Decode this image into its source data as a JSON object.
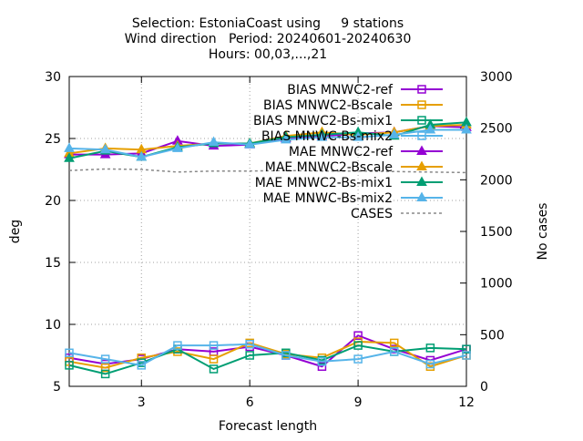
{
  "chart_data": {
    "type": "line",
    "title_lines": [
      "Selection: EstoniaCoast using     9 stations",
      "Wind direction   Period: 20240601-20240630",
      "Hours: 00,03,...,21"
    ],
    "xlabel": "Forecast length",
    "ylabel": "deg",
    "y2label": "No cases",
    "xlim": [
      1,
      12
    ],
    "ylim": [
      5,
      30
    ],
    "y2lim": [
      0,
      3000
    ],
    "xticks": [
      3,
      6,
      9,
      12
    ],
    "yticks": [
      5,
      10,
      15,
      20,
      25,
      30
    ],
    "y2ticks": [
      0,
      500,
      1000,
      1500,
      2000,
      2500,
      3000
    ],
    "grid": true,
    "legend_position": "top-right",
    "x": [
      1,
      2,
      3,
      4,
      5,
      6,
      7,
      8,
      9,
      10,
      11,
      12
    ],
    "series": [
      {
        "name": "BIAS MNWC2-ref",
        "color": "#9400d3",
        "marker": "open-square",
        "axis": "y",
        "values": [
          7.3,
          6.8,
          7.2,
          8.0,
          7.8,
          8.2,
          7.5,
          6.6,
          9.1,
          8.0,
          7.1,
          8.0
        ]
      },
      {
        "name": "BIAS MNWC2-Bscale",
        "color": "#e69f00",
        "marker": "open-square",
        "axis": "y",
        "values": [
          7.0,
          6.5,
          7.3,
          7.8,
          7.2,
          8.5,
          7.6,
          7.3,
          8.6,
          8.5,
          6.6,
          7.5
        ]
      },
      {
        "name": "BIAS MNWC2-Bs-mix1",
        "color": "#009e73",
        "marker": "open-square",
        "axis": "y",
        "values": [
          6.7,
          6.0,
          6.9,
          8.0,
          6.4,
          7.5,
          7.7,
          7.1,
          8.3,
          7.8,
          8.1,
          8.0
        ]
      },
      {
        "name": "BIAS MNWC-Bs-mix2",
        "color": "#56b4e9",
        "marker": "open-square",
        "axis": "y",
        "values": [
          7.7,
          7.2,
          6.7,
          8.3,
          8.3,
          8.4,
          7.5,
          7.0,
          7.2,
          7.8,
          6.8,
          7.5
        ]
      },
      {
        "name": "MAE MNWC2-ref",
        "color": "#9400d3",
        "marker": "filled-triangle",
        "axis": "y",
        "values": [
          23.7,
          23.7,
          23.8,
          24.8,
          24.4,
          24.5,
          25.0,
          25.2,
          25.4,
          25.5,
          26.0,
          25.9
        ]
      },
      {
        "name": "MAE MNWC2-Bscale",
        "color": "#e69f00",
        "marker": "filled-triangle",
        "axis": "y",
        "values": [
          23.8,
          24.2,
          24.1,
          24.4,
          24.6,
          24.6,
          25.2,
          25.5,
          25.3,
          25.5,
          26.0,
          26.1
        ]
      },
      {
        "name": "MAE MNWC2-Bs-mix1",
        "color": "#009e73",
        "marker": "filled-triangle",
        "axis": "y",
        "values": [
          23.4,
          24.0,
          23.5,
          24.3,
          24.6,
          24.6,
          25.1,
          25.3,
          25.5,
          25.2,
          26.1,
          26.3
        ]
      },
      {
        "name": "MAE MNWC-Bs-mix2",
        "color": "#56b4e9",
        "marker": "filled-triangle",
        "axis": "y",
        "values": [
          24.2,
          24.1,
          23.5,
          24.2,
          24.7,
          24.5,
          24.9,
          25.1,
          25.1,
          25.3,
          25.7,
          25.7
        ]
      },
      {
        "name": "CASES",
        "color": "#888888",
        "marker": "none",
        "dashed": true,
        "axis": "y2",
        "values": [
          2090,
          2105,
          2100,
          2075,
          2085,
          2085,
          2090,
          2085,
          2085,
          2080,
          2075,
          2070
        ]
      }
    ]
  }
}
